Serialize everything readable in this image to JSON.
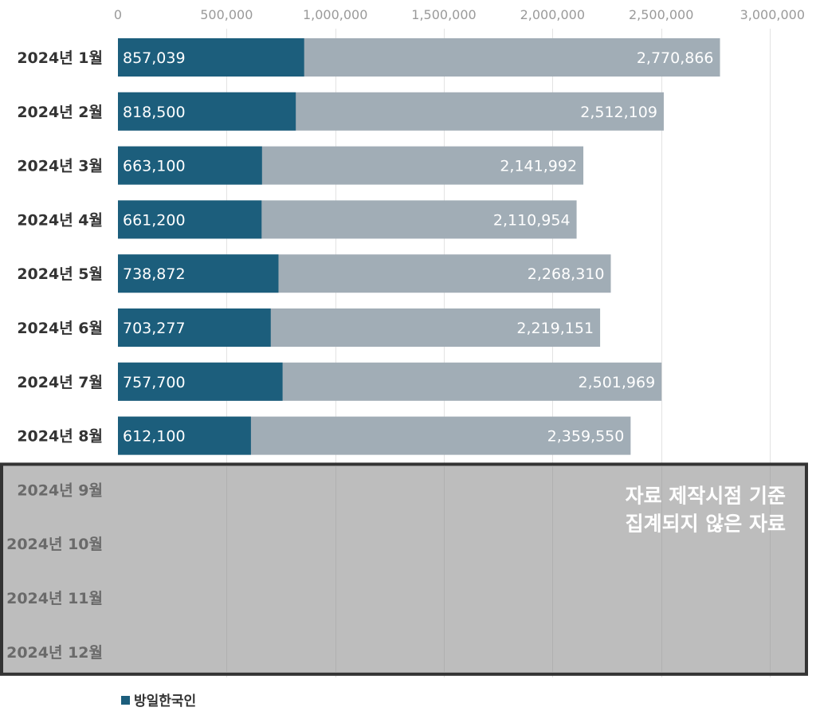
{
  "chart_data": {
    "type": "bar",
    "orientation": "horizontal",
    "stacked": false,
    "categories": [
      "2024년 1월",
      "2024년 2월",
      "2024년 3월",
      "2024년 4월",
      "2024년 5월",
      "2024년 6월",
      "2024년 7월",
      "2024년 8월",
      "2024년 9월",
      "2024년 10월",
      "2024년 11월",
      "2024년 12월"
    ],
    "series": [
      {
        "name": "",
        "color": "#a1adb6",
        "values": [
          2770866,
          2512109,
          2141992,
          2110954,
          2268310,
          2219151,
          2501969,
          2359550,
          null,
          null,
          null,
          null
        ],
        "labels": [
          "2,770,866",
          "2,512,109",
          "2,141,992",
          "2,110,954",
          "2,268,310",
          "2,219,151",
          "2,501,969",
          "2,359,550",
          "",
          "",
          "",
          ""
        ]
      },
      {
        "name": "방일한국인",
        "color": "#1c5e7c",
        "values": [
          857039,
          818500,
          663100,
          661200,
          738872,
          703277,
          757700,
          612100,
          null,
          null,
          null,
          null
        ],
        "labels": [
          "857,039",
          "818,500",
          "663,100",
          "661,200",
          "738,872",
          "703,277",
          "757,700",
          "612,100",
          "",
          "",
          "",
          ""
        ]
      }
    ],
    "xlim": [
      0,
      3000000
    ],
    "x_ticks": [
      0,
      500000,
      1000000,
      1500000,
      2000000,
      2500000,
      3000000
    ],
    "x_tick_labels": [
      "0",
      "500,000",
      "1,000,000",
      "1,500,000",
      "2,000,000",
      "2,500,000",
      "3,000,000"
    ],
    "x_axis_position": "top",
    "grid": true,
    "legend_position": "bottom-left",
    "legend": [
      {
        "label": "방일한국인",
        "color": "#1c5e7c"
      }
    ],
    "annotation": {
      "lines": [
        "자료 제작시점 기준",
        "집계되지 않은 자료"
      ],
      "covers_categories": [
        "2024년 9월",
        "2024년 10월",
        "2024년 11월",
        "2024년 12월"
      ],
      "fill": "#bdbdbd",
      "border": "#333333"
    },
    "colors": {
      "tick_label": "#9a9a9a",
      "category_label": "#333333",
      "category_label_muted": "#6a6a6a",
      "grid": "#e3e3e3",
      "bar_label": "#ffffff",
      "annotation_text": "#ffffff"
    }
  }
}
